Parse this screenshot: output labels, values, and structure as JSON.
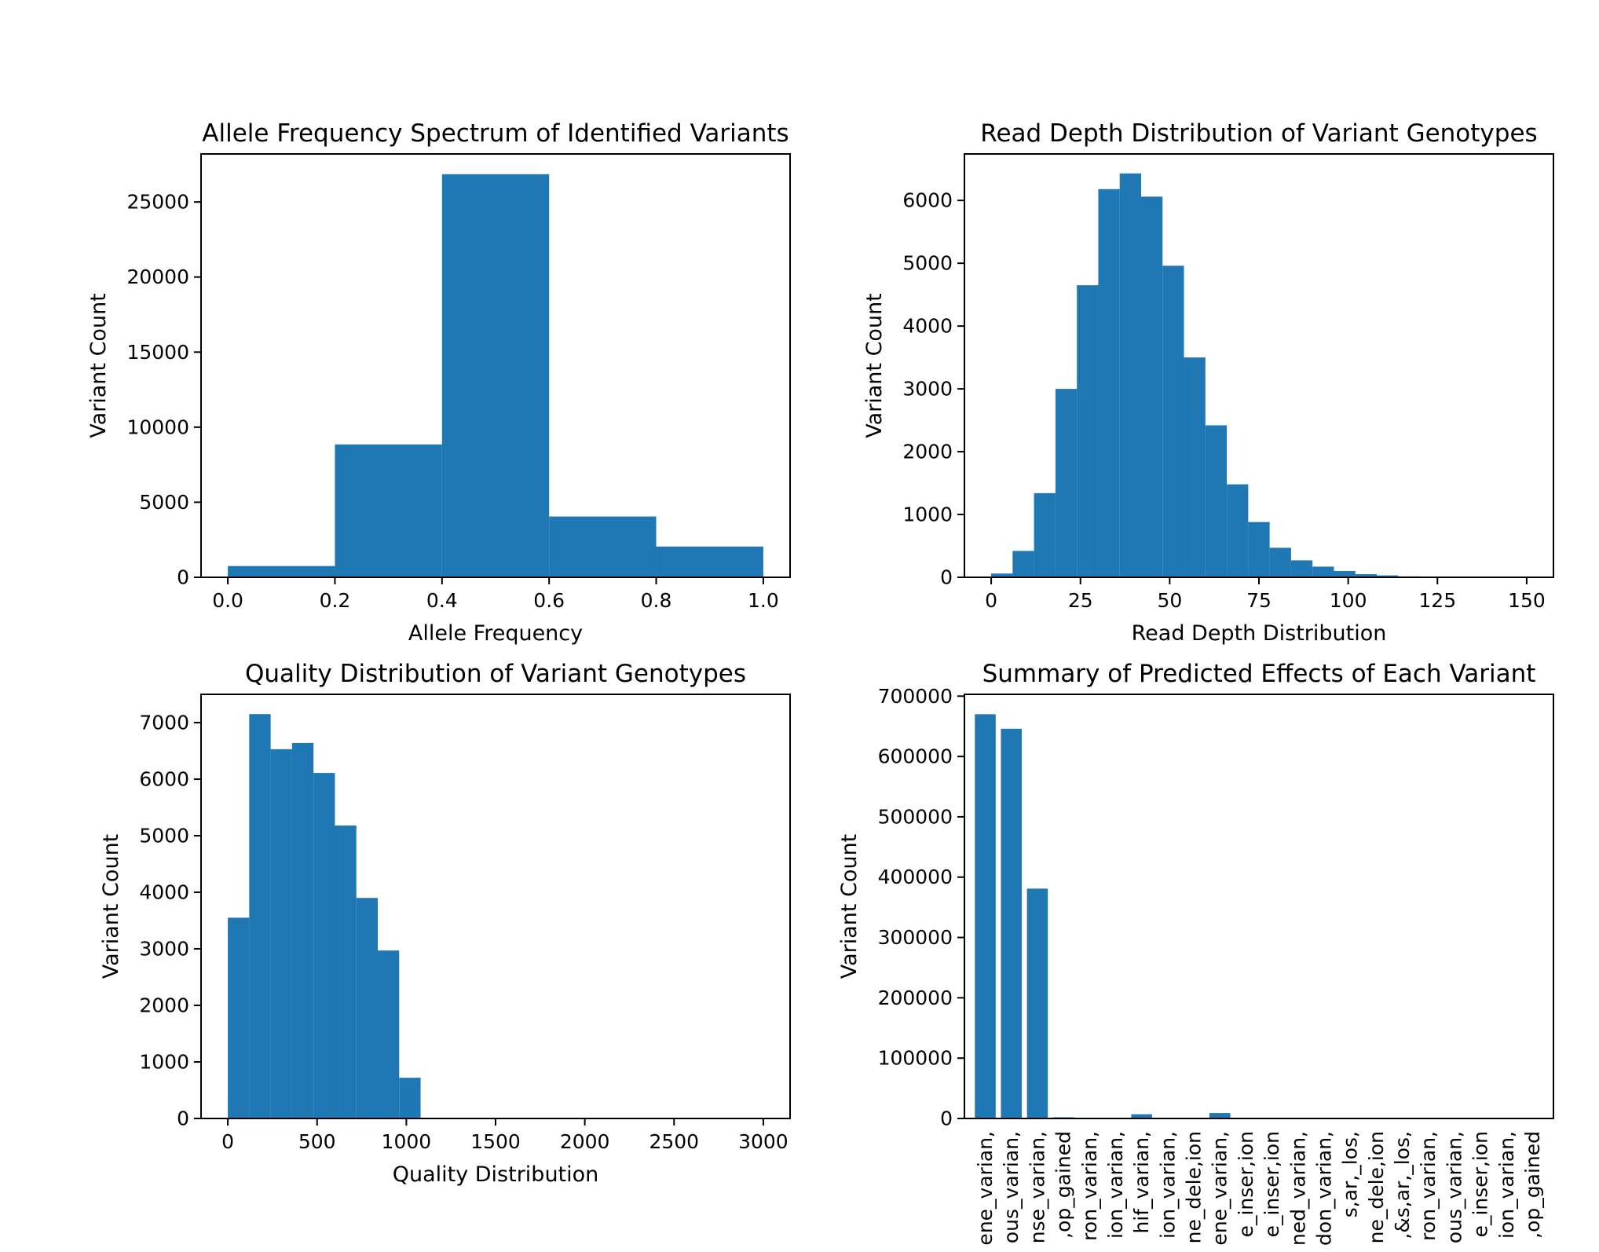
{
  "chart_data": [
    {
      "type": "bar",
      "id": "allele",
      "title": "Allele Frequency Spectrum of Identified Variants",
      "xlabel": "Allele Frequency",
      "ylabel": "Variant Count",
      "xlim": [
        -0.05,
        1.05
      ],
      "ylim": [
        0,
        28200
      ],
      "xticks": [
        0.0,
        0.2,
        0.4,
        0.6,
        0.8,
        1.0
      ],
      "xtick_labels": [
        "0.0",
        "0.2",
        "0.4",
        "0.6",
        "0.8",
        "1.0"
      ],
      "yticks": [
        0,
        5000,
        10000,
        15000,
        20000,
        25000
      ],
      "ytick_labels": [
        "0",
        "5000",
        "10000",
        "15000",
        "20000",
        "25000"
      ],
      "bin_start": 0.0,
      "bin_width": 0.2,
      "values": [
        750,
        8850,
        26850,
        4050,
        2050
      ],
      "color": "#1f77b4"
    },
    {
      "type": "bar",
      "id": "depth",
      "title": "Read Depth Distribution of Variant Genotypes",
      "xlabel": "Read Depth Distribution",
      "ylabel": "Variant Count",
      "xlim": [
        -7.5,
        157.5
      ],
      "ylim": [
        0,
        6740
      ],
      "xticks": [
        0,
        25,
        50,
        75,
        100,
        125,
        150
      ],
      "xtick_labels": [
        "0",
        "25",
        "50",
        "75",
        "100",
        "125",
        "150"
      ],
      "yticks": [
        0,
        1000,
        2000,
        3000,
        4000,
        5000,
        6000
      ],
      "ytick_labels": [
        "0",
        "1000",
        "2000",
        "3000",
        "4000",
        "5000",
        "6000"
      ],
      "bin_start": 0,
      "bin_width": 6,
      "values": [
        60,
        420,
        1340,
        3000,
        4650,
        6180,
        6430,
        6060,
        4960,
        3500,
        2420,
        1480,
        880,
        470,
        270,
        170,
        100,
        50,
        30,
        15,
        8,
        5,
        3,
        2,
        1
      ],
      "color": "#1f77b4"
    },
    {
      "type": "bar",
      "id": "quality",
      "title": "Quality Distribution of Variant Genotypes",
      "xlabel": "Quality Distribution",
      "ylabel": "Variant Count",
      "xlim": [
        -150,
        3150
      ],
      "ylim": [
        0,
        7500
      ],
      "xticks": [
        0,
        500,
        1000,
        1500,
        2000,
        2500,
        3000
      ],
      "xtick_labels": [
        "0",
        "500",
        "1000",
        "1500",
        "2000",
        "2500",
        "3000"
      ],
      "yticks": [
        0,
        1000,
        2000,
        3000,
        4000,
        5000,
        6000,
        7000
      ],
      "ytick_labels": [
        "0",
        "1000",
        "2000",
        "3000",
        "4000",
        "5000",
        "6000",
        "7000"
      ],
      "bin_start": 0,
      "bin_width": 120,
      "values": [
        3550,
        7150,
        6530,
        6640,
        6110,
        5180,
        3900,
        2970,
        720
      ],
      "color": "#1f77b4"
    },
    {
      "type": "bar",
      "id": "effects",
      "title": "Summary of Predicted Effects of Each Variant",
      "xlabel": "",
      "ylabel": "Variant Count",
      "ylim": [
        0,
        703000
      ],
      "yticks": [
        0,
        100000,
        200000,
        300000,
        400000,
        500000,
        600000,
        700000
      ],
      "ytick_labels": [
        "0",
        "100000",
        "200000",
        "300000",
        "400000",
        "500000",
        "600000",
        "700000"
      ],
      "categories": [
        "ene_varian,",
        "ous_varian,",
        "nse_varian,",
        ",op_gained",
        "ron_varian,",
        "ion_varian,",
        "hif_varian,",
        "ion_varian,",
        "ne_dele,ion",
        "ene_varian,",
        "e_inser,ion",
        "e_inser,ion",
        "ned_varian,",
        "don_varian,",
        "s,ar,_los,",
        "ne_dele,ion",
        ",&s,ar,_los,",
        "ron_varian,",
        "ous_varian,",
        "e_inser,ion",
        "ion_varian,",
        ",op_gained"
      ],
      "values": [
        670000,
        646000,
        381000,
        2000,
        600,
        300,
        7000,
        400,
        300,
        9000,
        200,
        200,
        200,
        100,
        100,
        100,
        100,
        100,
        100,
        100,
        100,
        100
      ],
      "color": "#1f77b4"
    }
  ]
}
